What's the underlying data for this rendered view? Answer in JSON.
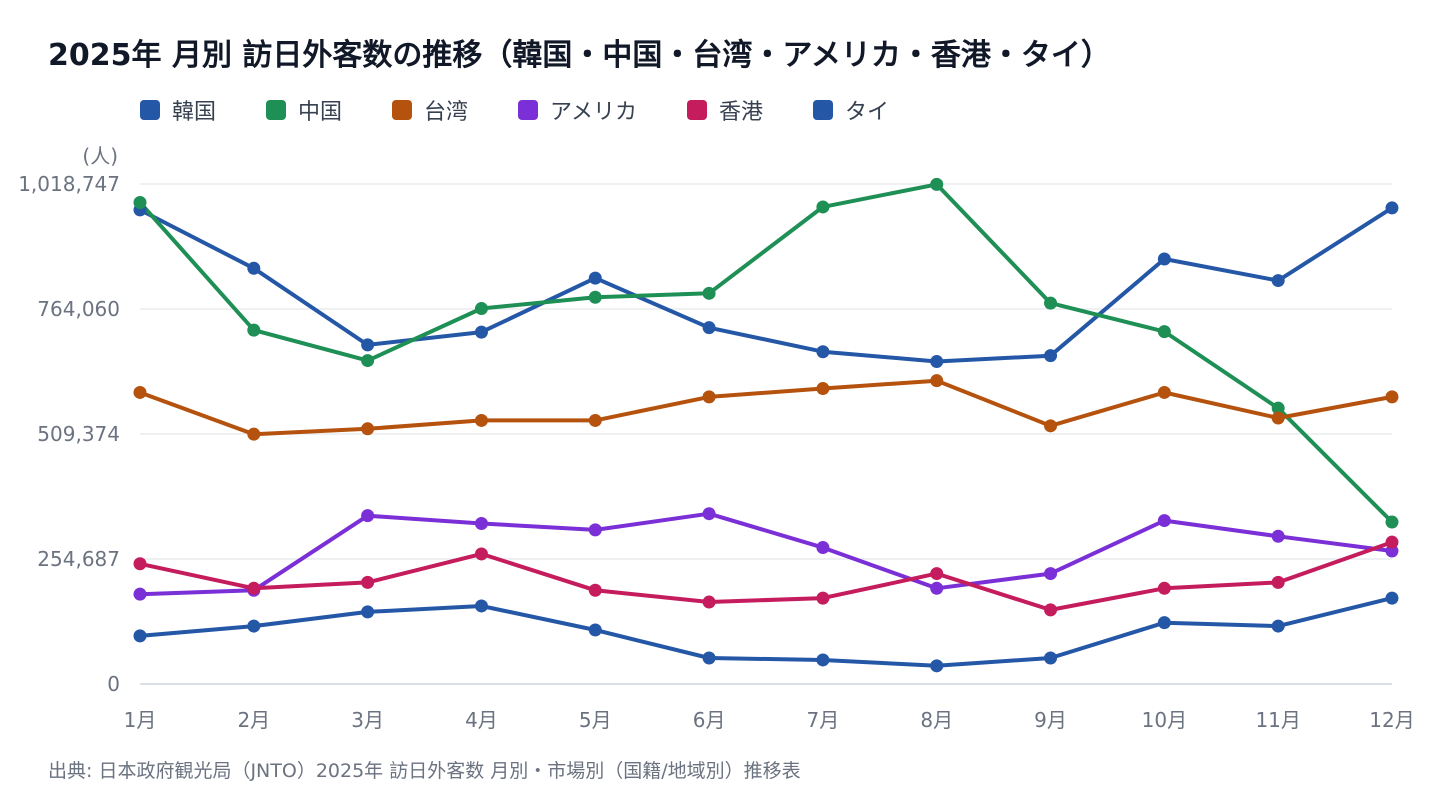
{
  "title": "2025年 月別 訪日外客数の推移（韓国・中国・台湾・アメリカ・香港・タイ）",
  "source": "出典: 日本政府観光局（JNTO）2025年 訪日外客数 月別・市場別（国籍/地域別）推移表",
  "chart_data": {
    "type": "line",
    "title": "2025年 月別 訪日外客数の推移（韓国・中国・台湾・アメリカ・香港・タイ）",
    "ylabel": "(人)",
    "ylim": [
      0,
      1018747
    ],
    "yticks": [
      0,
      254687,
      509374,
      764060,
      1018747
    ],
    "ytick_labels": [
      "0",
      "254,687",
      "509,374",
      "764,060",
      "1,018,747"
    ],
    "categories": [
      "1月",
      "2月",
      "3月",
      "4月",
      "5月",
      "6月",
      "7月",
      "8月",
      "9月",
      "10月",
      "11月",
      "12月"
    ],
    "grid": true,
    "legend": "top-left",
    "series": [
      {
        "name": "韓国",
        "color": "#2557a7",
        "values": [
          966000,
          847000,
          691000,
          717000,
          827000,
          726000,
          677000,
          657000,
          669000,
          866000,
          822000,
          970000
        ]
      },
      {
        "name": "中国",
        "color": "#1e8f55",
        "values": [
          981000,
          721000,
          659000,
          765000,
          788000,
          796000,
          972000,
          1018000,
          776000,
          718000,
          562000,
          330000
        ]
      },
      {
        "name": "台湾",
        "color": "#b5520d",
        "values": [
          594000,
          509000,
          520000,
          537000,
          537000,
          585000,
          602000,
          618000,
          526000,
          594000,
          542000,
          585000
        ]
      },
      {
        "name": "アメリカ",
        "color": "#7b2fd6",
        "values": [
          183000,
          191000,
          343000,
          327000,
          314000,
          347000,
          278000,
          195000,
          225000,
          333000,
          301000,
          271000
        ]
      },
      {
        "name": "香港",
        "color": "#c41c5c",
        "values": [
          245000,
          195000,
          207000,
          265000,
          191000,
          167000,
          175000,
          225000,
          151000,
          195000,
          207000,
          289000
        ]
      },
      {
        "name": "タイ",
        "color": "#2557a7",
        "values": [
          98000,
          118000,
          147000,
          159000,
          110000,
          53000,
          49000,
          37000,
          53000,
          125000,
          118000,
          175000
        ]
      }
    ]
  }
}
